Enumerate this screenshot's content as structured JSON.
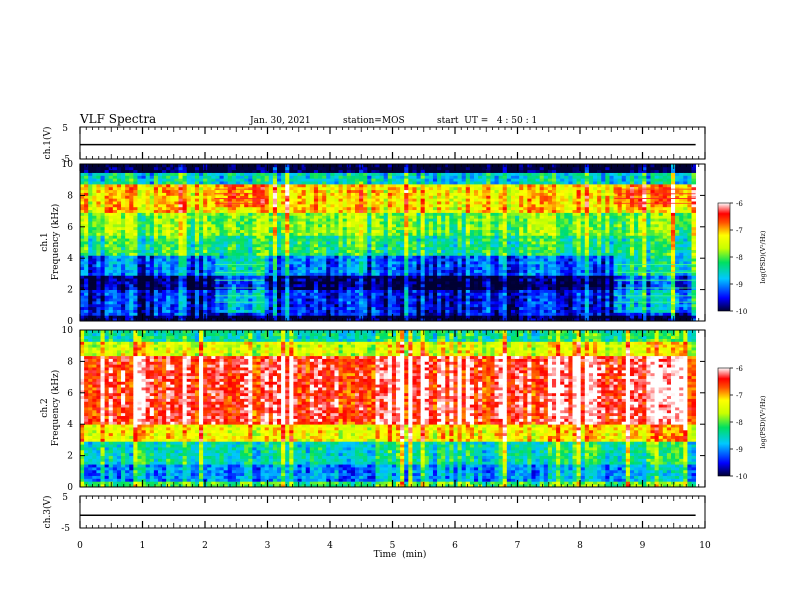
{
  "header": {
    "title": "VLF Spectra",
    "date": "Jan. 30, 2021",
    "station": "station=MOS",
    "start_ut": "start  UT =   4 : 50 : 1"
  },
  "colors": {
    "background": "#ffffff",
    "axis": "#000000",
    "spectrogram_low": "#000055",
    "spectrogram_high": "#ffffff"
  },
  "chart_data": [
    {
      "type": "line",
      "name": "ch1-waveform",
      "ylabel": "ch.1(V)",
      "ylim": [
        -5,
        5
      ],
      "y_ticks": [
        "5",
        "-5"
      ],
      "xlim": [
        0,
        10
      ],
      "x": [
        0,
        10
      ],
      "values": [
        -0.5,
        -0.5
      ]
    },
    {
      "type": "heatmap",
      "name": "ch1-spectrogram",
      "ylabel": "ch.1",
      "ylabel2": "Frequency (kHz)",
      "xlim": [
        0,
        10
      ],
      "ylim": [
        0,
        10
      ],
      "y_ticks": [
        "0",
        "2",
        "4",
        "6",
        "8",
        "10"
      ],
      "colorbar": {
        "label": "log(PSD)(V²/Hz)",
        "ticks": [
          "-6",
          "-7",
          "-8",
          "-9",
          "-10"
        ],
        "range": [
          -10,
          -6
        ]
      },
      "bands_khz": [
        {
          "f0": 9.4,
          "f1": 10.0,
          "level": -10.2
        },
        {
          "f0": 8.8,
          "f1": 9.4,
          "level": -8.6
        },
        {
          "f0": 7.0,
          "f1": 8.8,
          "level": -7.2
        },
        {
          "f0": 5.5,
          "f1": 7.0,
          "level": -7.9
        },
        {
          "f0": 4.2,
          "f1": 5.5,
          "level": -8.3
        },
        {
          "f0": 3.0,
          "f1": 4.2,
          "level": -9.2
        },
        {
          "f0": 2.0,
          "f1": 3.0,
          "level": -10.0
        },
        {
          "f0": 0.3,
          "f1": 2.0,
          "level": -9.5
        },
        {
          "f0": 0.0,
          "f1": 0.3,
          "level": -10.1
        }
      ],
      "segments_min": [
        {
          "t0": 2.15,
          "t1": 2.95,
          "note": "enhanced horizontal lines"
        },
        {
          "t0": 8.55,
          "t1": 9.85,
          "note": "enhanced horizontal lines"
        }
      ],
      "data_end_min": 9.85
    },
    {
      "type": "heatmap",
      "name": "ch2-spectrogram",
      "ylabel": "ch.2",
      "ylabel2": "Frequency (kHz)",
      "xlim": [
        0,
        10
      ],
      "ylim": [
        0,
        10
      ],
      "y_ticks": [
        "0",
        "2",
        "4",
        "6",
        "8",
        "10"
      ],
      "colorbar": {
        "label": "log(PSD)(V²/Hz)",
        "ticks": [
          "-6",
          "-7",
          "-8",
          "-9",
          "-10"
        ],
        "range": [
          -10,
          -6
        ]
      },
      "bands_khz": [
        {
          "f0": 9.3,
          "f1": 10.0,
          "level": -8.3
        },
        {
          "f0": 8.3,
          "f1": 9.3,
          "level": -7.4
        },
        {
          "f0": 4.0,
          "f1": 8.3,
          "level": -6.3
        },
        {
          "f0": 3.0,
          "f1": 4.0,
          "level": -7.2
        },
        {
          "f0": 1.5,
          "f1": 3.0,
          "level": -8.4
        },
        {
          "f0": 0.3,
          "f1": 1.5,
          "level": -8.9
        },
        {
          "f0": 0.0,
          "f1": 0.3,
          "level": -8.0
        }
      ],
      "data_end_min": 9.85
    },
    {
      "type": "line",
      "name": "ch3-waveform",
      "ylabel": "ch.3(V)",
      "ylim": [
        -5,
        5
      ],
      "y_ticks": [
        "5",
        "-5"
      ],
      "xlim": [
        0,
        10
      ],
      "x": [
        0,
        10
      ],
      "values": [
        -1.0,
        -1.0
      ]
    }
  ],
  "x_axis": {
    "label": "Time  (min)",
    "ticks": [
      "0",
      "1",
      "2",
      "3",
      "4",
      "5",
      "6",
      "7",
      "8",
      "9",
      "10"
    ]
  }
}
